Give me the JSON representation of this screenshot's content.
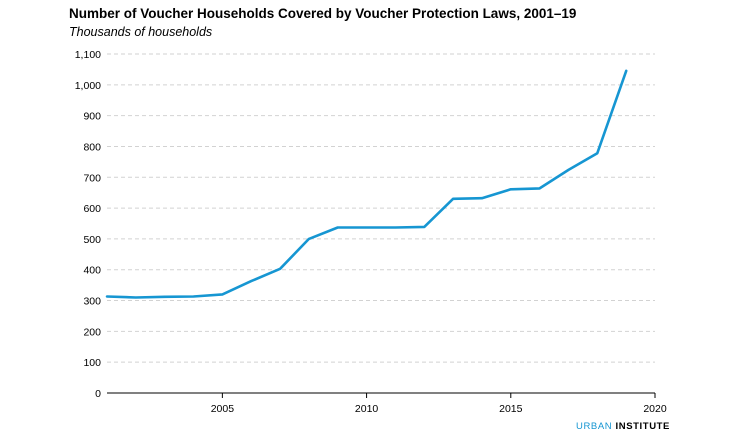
{
  "chart_data": {
    "type": "line",
    "title": "Number of Voucher Households Covered by Voucher Protection Laws, 2001–19",
    "subtitle": "Thousands of households",
    "xlim": [
      2001,
      2020
    ],
    "ylim": [
      0,
      1100
    ],
    "x_ticks": [
      2005,
      2010,
      2015,
      2020
    ],
    "y_ticks": [
      0,
      100,
      200,
      300,
      400,
      500,
      600,
      700,
      800,
      900,
      1000,
      1100
    ],
    "y_tick_labels": [
      "0",
      "100",
      "200",
      "300",
      "400",
      "500",
      "600",
      "700",
      "800",
      "900",
      "1,000",
      "1,100"
    ],
    "grid": "horizontal dashed",
    "line_color": "#1696d2",
    "series": [
      {
        "x": [
          2001,
          2002,
          2003,
          2004,
          2005,
          2006,
          2007,
          2008,
          2009,
          2010,
          2011,
          2012,
          2013,
          2014,
          2015,
          2016,
          2017,
          2018,
          2019
        ],
        "values": [
          313,
          310,
          312,
          313,
          320,
          363,
          403,
          500,
          537,
          537,
          537,
          539,
          630,
          632,
          661,
          664,
          724,
          778,
          1045
        ]
      }
    ]
  },
  "branding": {
    "part1": "URBAN",
    "part2": "INSTITUTE"
  }
}
